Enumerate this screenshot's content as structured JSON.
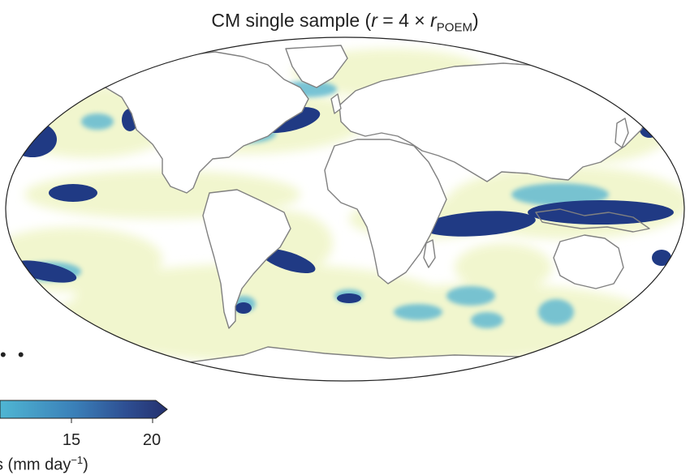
{
  "title": {
    "prefix": "CM single sample (",
    "r": "r",
    "middle": " = 4 × ",
    "r2": "r",
    "subscript": "POEM",
    "suffix": ")"
  },
  "colorbar": {
    "ticks": [
      "15",
      "20"
    ],
    "label_text": "s (mm day",
    "label_exp": "−1",
    "label_end": ")",
    "colors": [
      "#4fb6d3",
      "#3a7fb8",
      "#2e4f93",
      "#24306e"
    ]
  },
  "palette": {
    "light": "#f1f6cc",
    "cyan": "#62b9d1",
    "blue": "#3269a8",
    "navy": "#203a84",
    "coast": "#808080"
  },
  "overflow_marker": "• •"
}
